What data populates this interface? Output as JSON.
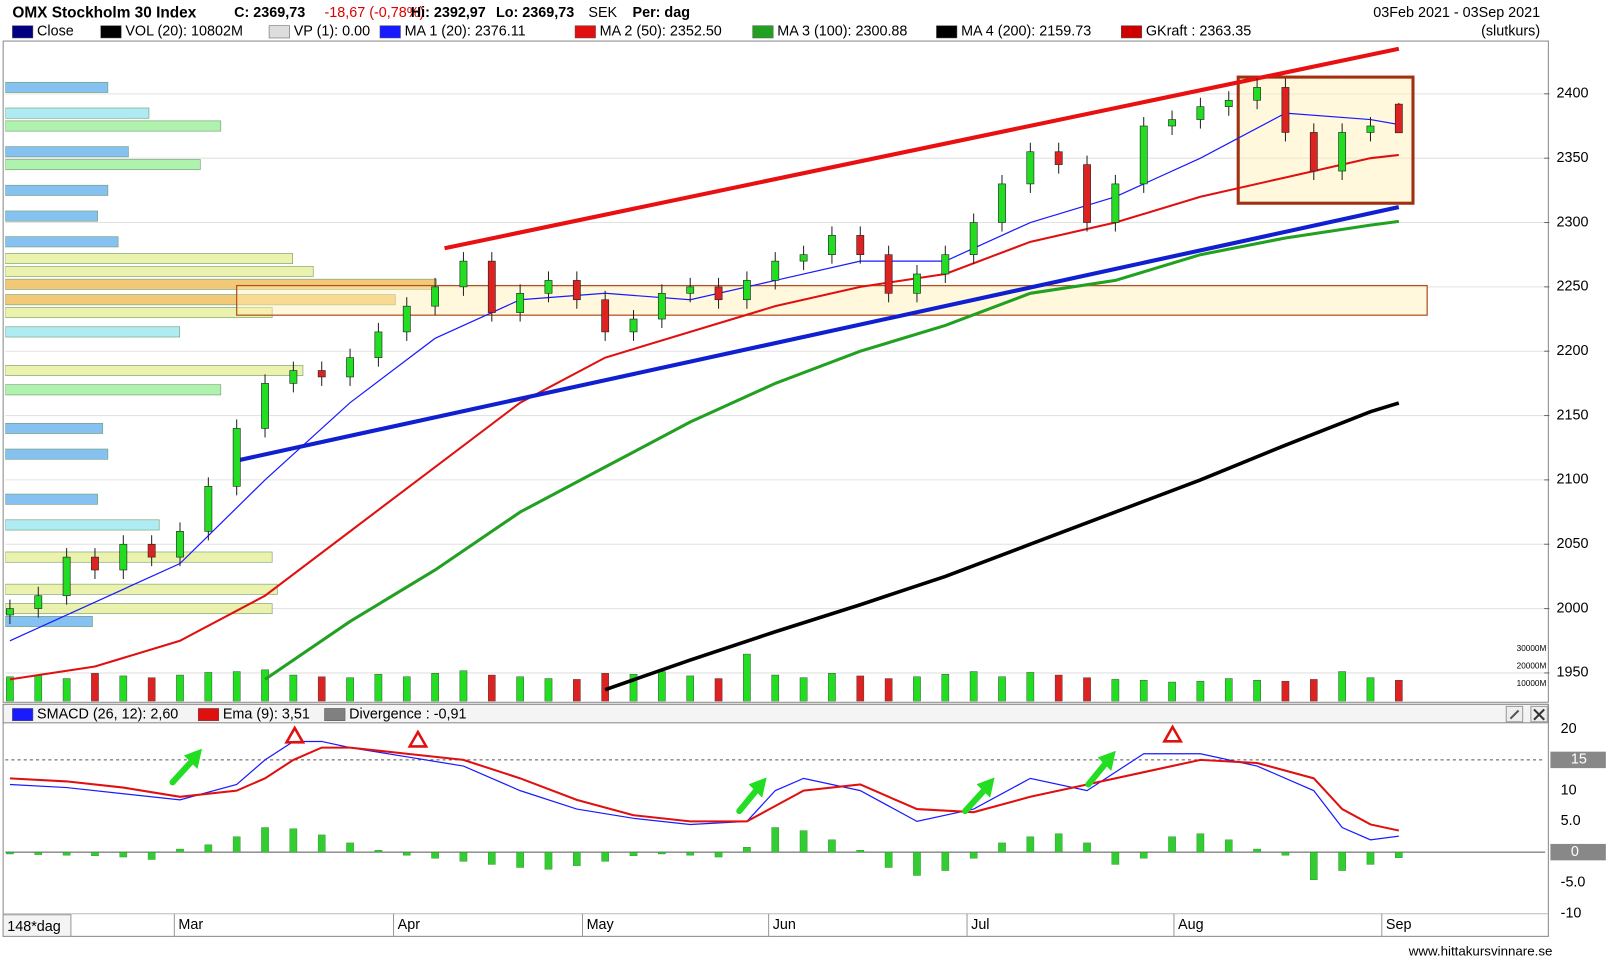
{
  "page": {
    "title": "OMX Stockholm 30 Index",
    "close": "C: 2369,73",
    "change": "-18,67 (-0,78%)",
    "high": "Hi: 2392,97",
    "low": "Lo: 2369,73",
    "currency": "SEK",
    "period": "Per: dag",
    "date_range": "03Feb 2021 - 03Sep 2021",
    "price_type": "(slutkurs)",
    "bars": "148*dag",
    "source": "www.hittakursvinnare.se"
  },
  "chart_data": [
    {
      "type": "candlestick",
      "x": [
        0,
        3,
        6,
        9,
        12,
        15,
        18,
        21,
        24,
        27,
        30,
        33,
        36,
        39,
        42,
        45,
        48,
        51,
        54,
        57,
        60,
        63,
        66,
        69,
        72,
        75,
        78,
        81,
        84,
        87,
        90,
        93,
        96,
        99,
        102,
        105,
        108,
        111,
        114,
        117,
        120,
        123,
        126,
        129,
        132,
        135,
        138,
        141,
        144,
        147
      ],
      "open": [
        1995,
        2000,
        2010,
        2040,
        2030,
        2050,
        2040,
        2060,
        2095,
        2140,
        2175,
        2185,
        2180,
        2195,
        2215,
        2235,
        2250,
        2270,
        2230,
        2245,
        2255,
        2240,
        2215,
        2225,
        2245,
        2250,
        2240,
        2255,
        2270,
        2275,
        2290,
        2275,
        2245,
        2260,
        2275,
        2300,
        2330,
        2355,
        2345,
        2300,
        2330,
        2375,
        2380,
        2390,
        2395,
        2405,
        2370,
        2340,
        2370,
        2392
      ],
      "high": [
        2007,
        2017,
        2047,
        2047,
        2057,
        2057,
        2067,
        2102,
        2147,
        2182,
        2192,
        2192,
        2202,
        2222,
        2242,
        2257,
        2277,
        2277,
        2252,
        2262,
        2262,
        2247,
        2232,
        2252,
        2257,
        2257,
        2262,
        2277,
        2282,
        2297,
        2297,
        2282,
        2267,
        2282,
        2307,
        2337,
        2362,
        2362,
        2352,
        2337,
        2382,
        2387,
        2397,
        2402,
        2412,
        2412,
        2377,
        2377,
        2382,
        2392.97
      ],
      "low": [
        1988,
        1993,
        2003,
        2023,
        2023,
        2033,
        2033,
        2053,
        2088,
        2133,
        2168,
        2173,
        2173,
        2188,
        2208,
        2228,
        2243,
        2223,
        2223,
        2238,
        2233,
        2208,
        2208,
        2218,
        2238,
        2233,
        2233,
        2248,
        2263,
        2268,
        2268,
        2238,
        2238,
        2253,
        2268,
        2293,
        2323,
        2338,
        2293,
        2293,
        2323,
        2368,
        2373,
        2383,
        2388,
        2363,
        2333,
        2333,
        2363,
        2369.73
      ],
      "close": [
        2000,
        2010,
        2040,
        2030,
        2050,
        2040,
        2060,
        2095,
        2140,
        2175,
        2185,
        2180,
        2195,
        2215,
        2235,
        2250,
        2270,
        2230,
        2245,
        2255,
        2240,
        2215,
        2225,
        2245,
        2250,
        2240,
        2255,
        2270,
        2275,
        2290,
        2275,
        2245,
        2260,
        2275,
        2300,
        2330,
        2355,
        2345,
        2300,
        2330,
        2375,
        2380,
        2390,
        2395,
        2405,
        2370,
        2340,
        2370,
        2375,
        2369.73
      ],
      "up_color": "#22dd22",
      "down_color": "#dd2222",
      "xlim": [
        -0.5,
        162.5
      ],
      "ylim": [
        1928,
        2441
      ],
      "yticks": [
        1950,
        2000,
        2050,
        2100,
        2150,
        2200,
        2250,
        2300,
        2350,
        2400
      ],
      "xticks": [
        {
          "value": 17.4,
          "label": "Mar"
        },
        {
          "value": 40.6,
          "label": "Apr"
        },
        {
          "value": 60.6,
          "label": "May"
        },
        {
          "value": 80.3,
          "label": "Jun"
        },
        {
          "value": 101.3,
          "label": "Jul"
        },
        {
          "value": 123.2,
          "label": "Aug"
        },
        {
          "value": 145.2,
          "label": "Sep"
        }
      ],
      "grid": true,
      "legend_extra": [
        {
          "name": "Close",
          "color": "#000080"
        },
        {
          "name": "VOL (20): 10802M",
          "color": "#000000"
        },
        {
          "name": "VP (1): 0.00",
          "color": "#dddddd"
        },
        {
          "name": "GKraft : 2363.35",
          "color": "#cc0000"
        }
      ],
      "series": [
        {
          "name": "MA 1 (20): 2376.11",
          "color": "#1a1aff",
          "width": 1.2,
          "x": [
            0,
            9,
            18,
            27,
            36,
            45,
            54,
            63,
            72,
            81,
            90,
            99,
            108,
            117,
            126,
            135,
            144,
            147
          ],
          "values": [
            1975,
            2005,
            2035,
            2100,
            2160,
            2210,
            2240,
            2245,
            2240,
            2255,
            2270,
            2270,
            2300,
            2320,
            2350,
            2385,
            2380,
            2376.11
          ]
        },
        {
          "name": "MA 2 (50): 2352.50",
          "color": "#e01010",
          "width": 2,
          "x": [
            0,
            9,
            18,
            27,
            36,
            45,
            54,
            63,
            72,
            81,
            90,
            99,
            108,
            117,
            126,
            135,
            144,
            147
          ],
          "values": [
            1945,
            1955,
            1975,
            2010,
            2060,
            2110,
            2160,
            2195,
            2215,
            2235,
            2250,
            2260,
            2285,
            2300,
            2320,
            2335,
            2350,
            2352.5
          ]
        },
        {
          "name": "MA 3 (100): 2300.88",
          "color": "#22a022",
          "width": 3,
          "x": [
            0,
            9,
            18,
            27,
            36,
            45,
            54,
            63,
            72,
            81,
            90,
            99,
            108,
            117,
            126,
            135,
            144,
            147
          ],
          "values": [
            null,
            null,
            null,
            1945,
            1990,
            2030,
            2075,
            2110,
            2145,
            2175,
            2200,
            2220,
            2245,
            2255,
            2275,
            2288,
            2298,
            2300.88
          ]
        },
        {
          "name": "MA 4 (200): 2159.73",
          "color": "#000000",
          "width": 3.5,
          "x": [
            63,
            72,
            81,
            90,
            99,
            108,
            117,
            126,
            135,
            144,
            147
          ],
          "values": [
            1937,
            1960,
            1982,
            2003,
            2025,
            2050,
            2075,
            2100,
            2127,
            2153,
            2159.73
          ]
        }
      ],
      "trendlines": [
        {
          "color": "#e81010",
          "x": [
            46,
            147
          ],
          "values": [
            2280,
            2435
          ]
        },
        {
          "color": "#1020d0",
          "x": [
            24,
            147
          ],
          "values": [
            2115,
            2312
          ]
        }
      ],
      "zones": [
        {
          "x": [
            24,
            150
          ],
          "values": [
            2228,
            2251
          ],
          "color": "#b05020"
        },
        {
          "x": [
            130,
            148.5
          ],
          "values": [
            2315,
            2413
          ],
          "color": "#a03010"
        }
      ],
      "volume": {
        "values": [
          14000,
          15000,
          13000,
          16000,
          14500,
          13500,
          15000,
          16500,
          17000,
          18000,
          15000,
          14000,
          13500,
          15500,
          14000,
          16000,
          17500,
          15000,
          14000,
          13000,
          12500,
          16000,
          15500,
          17000,
          14500,
          13000,
          27000,
          15000,
          13500,
          16000,
          14500,
          13000,
          14000,
          15500,
          17000,
          14000,
          16500,
          15000,
          13500,
          12500,
          12000,
          11000,
          11500,
          13000,
          12000,
          11500,
          12500,
          17000,
          13500,
          12000
        ],
        "ylim": [
          0,
          48800
        ],
        "yticks": [
          {
            "value": 10000,
            "label": "10000M"
          },
          {
            "value": 20000,
            "label": "20000M"
          },
          {
            "value": 30000,
            "label": "30000M"
          }
        ]
      },
      "volume_profile": {
        "levels": [
          2405,
          2385,
          2375,
          2355,
          2345,
          2325,
          2305,
          2285,
          2272,
          2262,
          2252,
          2240,
          2230,
          2215,
          2185,
          2170,
          2140,
          2120,
          2085,
          2065,
          2040,
          2015,
          2000,
          1990
        ],
        "values": [
          100,
          140,
          210,
          120,
          190,
          100,
          90,
          110,
          280,
          300,
          420,
          380,
          260,
          170,
          290,
          210,
          95,
          100,
          90,
          150,
          260,
          265,
          260,
          85
        ],
        "xlim": [
          0,
          440
        ]
      }
    },
    {
      "type": "macd",
      "xlim": [
        -0.5,
        162.5
      ],
      "ylim": [
        -13.7,
        21.7
      ],
      "yticks": [
        20,
        15,
        10,
        {
          "value": 5,
          "label": "5.0"
        },
        0,
        {
          "value": -5,
          "label": "-5.0"
        },
        -10
      ],
      "reference_line": 15,
      "series": [
        {
          "name": "SMACD (26, 12): 2,60",
          "color": "#1a1aff",
          "x": [
            0,
            6,
            12,
            18,
            24,
            27,
            30,
            33,
            36,
            42,
            48,
            54,
            60,
            66,
            72,
            78,
            81,
            84,
            90,
            96,
            102,
            108,
            114,
            120,
            126,
            132,
            138,
            141,
            144,
            147
          ],
          "values": [
            11,
            10.5,
            9.5,
            8.5,
            11,
            15,
            18,
            18,
            17,
            15.5,
            14,
            10,
            7,
            5.5,
            4.5,
            5,
            10,
            12,
            10,
            5,
            7,
            12,
            10,
            16,
            16,
            14,
            10,
            4,
            2,
            2.6
          ]
        },
        {
          "name": "Ema (9): 3,51",
          "color": "#e01010",
          "x": [
            0,
            6,
            12,
            18,
            24,
            27,
            30,
            33,
            36,
            42,
            48,
            54,
            60,
            66,
            72,
            78,
            81,
            84,
            90,
            96,
            102,
            108,
            114,
            120,
            126,
            132,
            138,
            141,
            144,
            147
          ],
          "values": [
            12,
            11.5,
            10.5,
            9,
            10,
            12,
            15,
            17,
            17,
            16,
            15,
            12,
            8.5,
            6,
            5,
            5,
            7.5,
            10,
            11,
            7,
            6.5,
            9,
            11,
            13,
            15,
            14.5,
            12,
            7,
            4.5,
            3.51
          ]
        }
      ],
      "histogram": {
        "name": "Divergence : -0,91",
        "legend_color": "#808080",
        "color": "#33cc33",
        "x": [
          0,
          3,
          6,
          9,
          12,
          15,
          18,
          21,
          24,
          27,
          30,
          33,
          36,
          39,
          42,
          45,
          48,
          51,
          54,
          57,
          60,
          63,
          66,
          69,
          72,
          75,
          78,
          81,
          84,
          87,
          90,
          93,
          96,
          99,
          102,
          105,
          108,
          111,
          114,
          117,
          120,
          123,
          126,
          129,
          132,
          135,
          138,
          141,
          144,
          147
        ],
        "values": [
          -0.3,
          -0.4,
          -0.5,
          -0.6,
          -0.8,
          -1.2,
          0.5,
          1.2,
          2.5,
          4,
          3.8,
          2.8,
          1.5,
          0.3,
          -0.5,
          -1,
          -1.5,
          -2,
          -2.5,
          -2.8,
          -2.2,
          -1.5,
          -0.6,
          -0.3,
          -0.5,
          -0.8,
          0.8,
          4,
          3.5,
          2,
          0.3,
          -2.5,
          -3.8,
          -3,
          -1,
          1.5,
          2.5,
          3,
          1.5,
          -2,
          -1,
          2.5,
          3,
          2,
          0.5,
          -0.5,
          -4.5,
          -3,
          -2,
          -0.91
        ]
      }
    }
  ]
}
